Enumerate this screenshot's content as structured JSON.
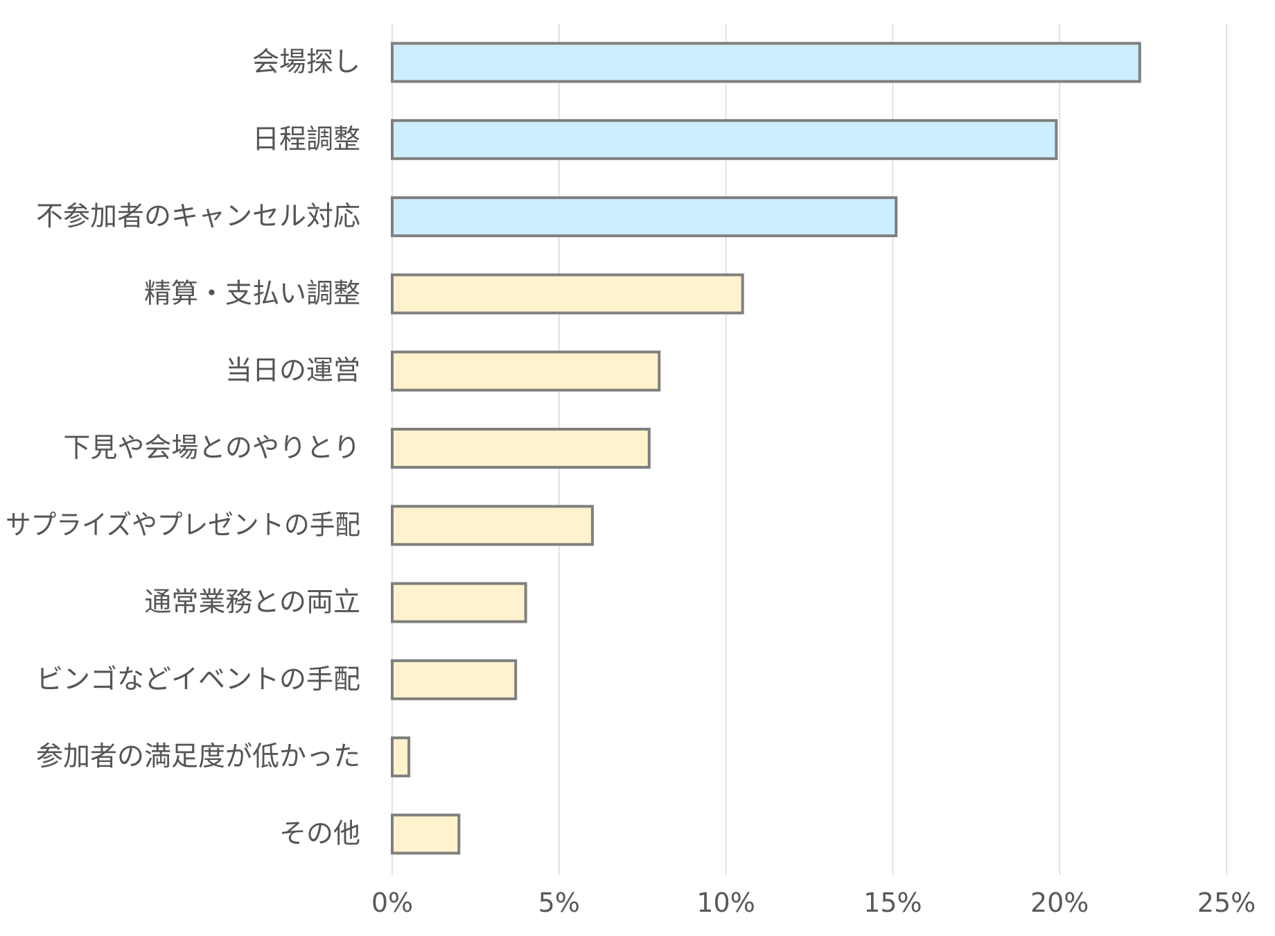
{
  "chart_data": {
    "type": "bar",
    "orientation": "horizontal",
    "title": "",
    "xlabel": "",
    "ylabel": "",
    "categories": [
      "会場探し",
      "日程調整",
      "不参加者のキャンセル対応",
      "精算・支払い調整",
      "当日の運営",
      "下見や会場とのやりとり",
      "サプライズやプレゼントの手配",
      "通常業務との両立",
      "ビンゴなどイベントの手配",
      "参加者の満足度が低かった",
      "その他"
    ],
    "values": [
      22.4,
      19.9,
      15.1,
      10.5,
      8.0,
      7.7,
      6.0,
      4.0,
      3.7,
      0.5,
      2.0
    ],
    "highlight_top_n": 3,
    "highlight_color": "#cdeefc",
    "base_color": "#fff2cc",
    "bar_border_color": "#7f7f7f",
    "xlim": [
      0,
      25
    ],
    "x_ticks": [
      0,
      5,
      10,
      15,
      20,
      25
    ],
    "x_tick_labels": [
      "0%",
      "5%",
      "10%",
      "15%",
      "20%",
      "25%"
    ],
    "grid": "vertical",
    "legend": "none"
  }
}
